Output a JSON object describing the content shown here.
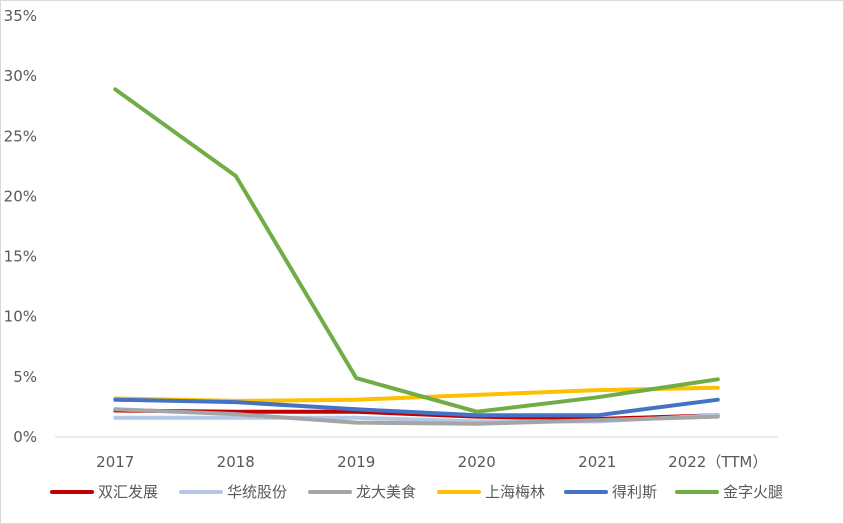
{
  "chart_data": {
    "type": "line",
    "categories": [
      "2017",
      "2018",
      "2019",
      "2020",
      "2021",
      "2022（TTM）"
    ],
    "ylim": [
      0,
      35
    ],
    "yticks": [
      "0%",
      "5%",
      "10%",
      "15%",
      "20%",
      "25%",
      "30%",
      "35%"
    ],
    "grid": false,
    "legend_position": "bottom",
    "series": [
      {
        "name": "双汇发展",
        "color": "#C00000",
        "values": [
          2.2,
          2.1,
          2.1,
          1.7,
          1.5,
          1.8
        ]
      },
      {
        "name": "华统股份",
        "color": "#B4C7E7",
        "values": [
          1.6,
          1.6,
          1.6,
          1.3,
          1.3,
          1.8
        ]
      },
      {
        "name": "龙大美食",
        "color": "#A5A5A5",
        "values": [
          2.3,
          1.9,
          1.2,
          1.1,
          1.4,
          1.7
        ]
      },
      {
        "name": "上海梅林",
        "color": "#FFC000",
        "values": [
          3.2,
          3.0,
          3.1,
          3.5,
          3.9,
          4.1
        ]
      },
      {
        "name": "得利斯",
        "color": "#4472C4",
        "values": [
          3.1,
          2.9,
          2.3,
          1.8,
          1.8,
          3.1
        ]
      },
      {
        "name": "金字火腿",
        "color": "#70AD47",
        "values": [
          28.9,
          21.7,
          4.9,
          2.1,
          3.3,
          4.8
        ]
      }
    ]
  }
}
